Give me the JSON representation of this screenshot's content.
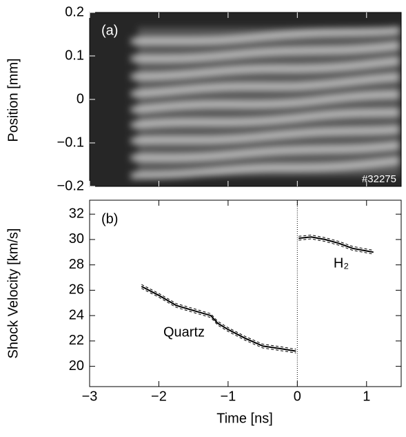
{
  "chart_data": [
    {
      "type": "image",
      "ylabel": "Position [mm]",
      "ylim": [
        -0.2,
        0.2
      ],
      "yticks": [
        {
          "value": 0.2,
          "label": "0.2"
        },
        {
          "value": 0.1,
          "label": "0.1"
        },
        0,
        {
          "value": -0.1,
          "label": "−0.1"
        },
        {
          "value": -0.2,
          "label": "−0.2"
        }
      ],
      "annotations": [
        "(a)",
        "#32275"
      ]
    },
    {
      "type": "line",
      "xlabel": "Time [ns]",
      "ylabel": "Shock Velocity [km/s]",
      "xlim": [
        -3,
        1.5
      ],
      "xticks": [
        {
          "value": -3,
          "label": "−3"
        },
        {
          "value": -2,
          "label": "−2"
        },
        {
          "value": -1,
          "label": "−1"
        },
        0,
        1
      ],
      "ylim": [
        18.4,
        33.1
      ],
      "yticks": [
        20,
        22,
        24,
        26,
        28,
        30,
        32
      ],
      "vline_x": 0,
      "annotations": [
        "(b)"
      ],
      "series": [
        {
          "name": "Quartz",
          "color": "#000000",
          "x": [
            -2.25,
            -2.0,
            -1.75,
            -1.5,
            -1.25,
            -1.15,
            -1.0,
            -0.75,
            -0.5,
            -0.25,
            -0.02
          ],
          "values": [
            26.3,
            25.6,
            24.8,
            24.4,
            24.0,
            23.4,
            22.9,
            22.2,
            21.6,
            21.4,
            21.2
          ],
          "lower": [
            26.15,
            25.45,
            24.65,
            24.25,
            23.85,
            23.25,
            22.75,
            22.05,
            21.45,
            21.25,
            21.05
          ],
          "upper": [
            26.45,
            25.75,
            24.95,
            24.55,
            24.15,
            23.55,
            23.05,
            22.35,
            21.75,
            21.55,
            21.35
          ]
        },
        {
          "name": "H₂",
          "color": "#000000",
          "x": [
            0.02,
            0.2,
            0.4,
            0.6,
            0.8,
            1.0,
            1.1
          ],
          "values": [
            30.1,
            30.2,
            30.0,
            29.7,
            29.3,
            29.1,
            29.0
          ],
          "lower": [
            29.95,
            30.05,
            29.85,
            29.55,
            29.15,
            28.95,
            28.85
          ],
          "upper": [
            30.25,
            30.35,
            30.15,
            29.85,
            29.45,
            29.25,
            29.15
          ]
        }
      ]
    }
  ]
}
